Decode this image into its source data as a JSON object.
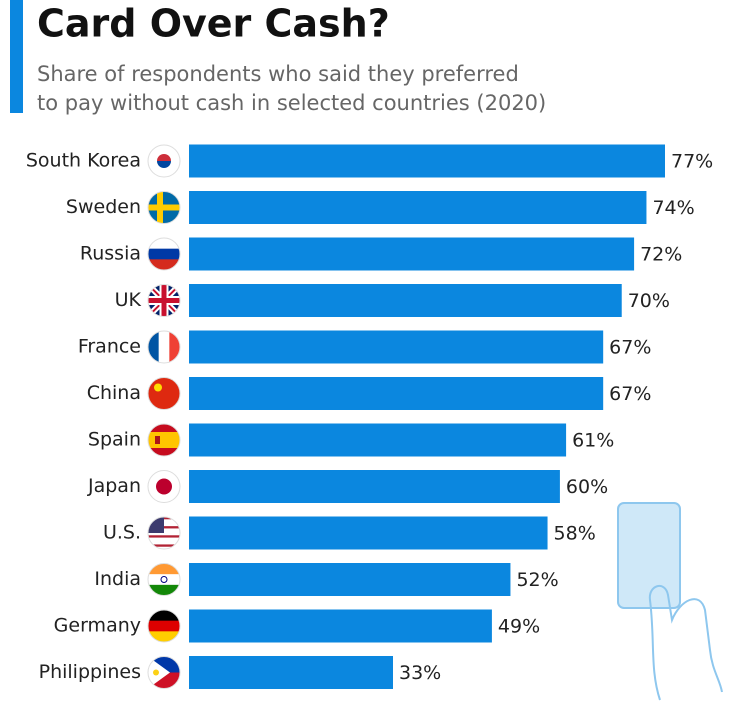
{
  "chart_data": {
    "type": "bar",
    "orientation": "horizontal",
    "title": "Card Over Cash?",
    "subtitle": [
      "Share of respondents who said they preferred",
      "to pay without cash in selected countries (2020)"
    ],
    "categories": [
      "South Korea",
      "Sweden",
      "Russia",
      "UK",
      "France",
      "China",
      "Spain",
      "Japan",
      "U.S.",
      "India",
      "Germany",
      "Philippines"
    ],
    "values": [
      77,
      74,
      72,
      70,
      67,
      67,
      61,
      60,
      58,
      52,
      49,
      33
    ],
    "value_labels": [
      "77%",
      "74%",
      "72%",
      "70%",
      "67%",
      "67%",
      "61%",
      "60%",
      "58%",
      "52%",
      "49%",
      "33%"
    ],
    "color": "#0b87df"
  }
}
